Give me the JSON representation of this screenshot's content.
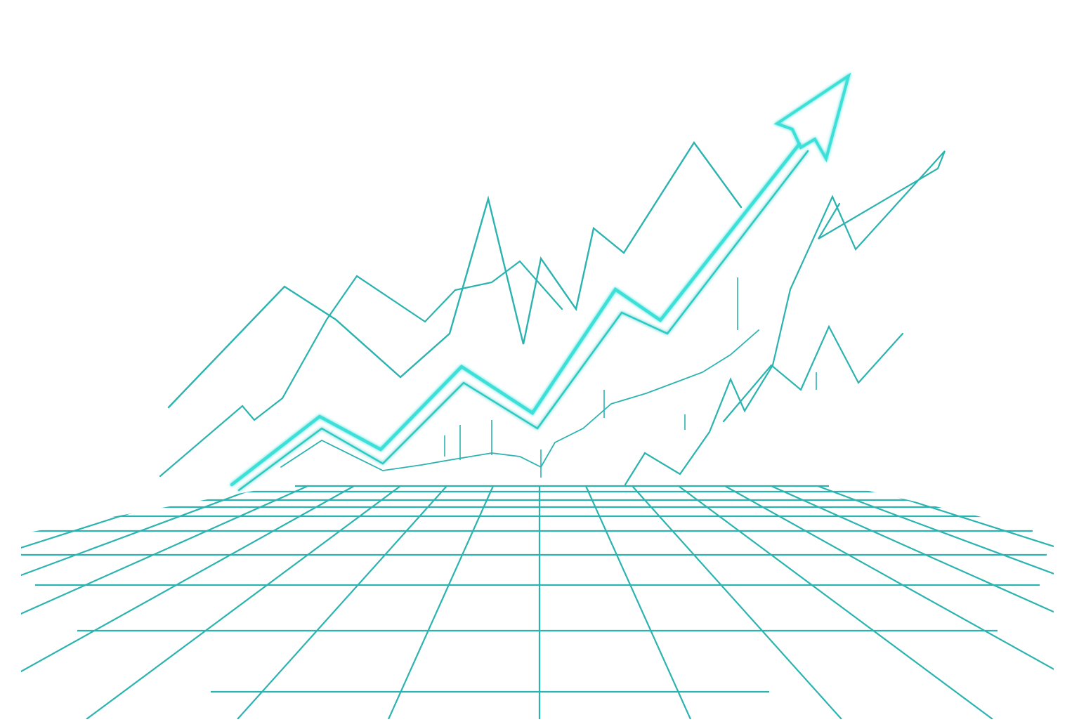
{
  "illustration": {
    "subject": "rising-trend-lines-over-perspective-grid",
    "palette": {
      "primary": "#2bb3b0",
      "accent": "#3ee0d8",
      "background": "#ffffff"
    },
    "icons": [
      "trend-up-arrow-icon",
      "arrowhead-icon"
    ],
    "line_count": 5
  }
}
